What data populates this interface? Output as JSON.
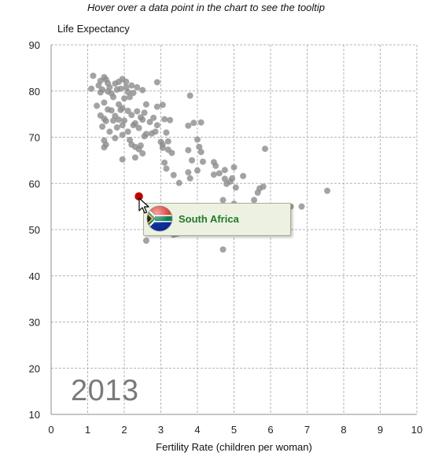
{
  "instruction": "Hover over a data point in the chart to see the tooltip",
  "chart_data": {
    "type": "scatter",
    "title": "",
    "xlabel": "Fertility Rate (children per woman)",
    "ylabel": "Life Expectancy",
    "xlim": [
      0,
      10
    ],
    "ylim": [
      10,
      90
    ],
    "x_ticks": [
      "0",
      "1",
      "2",
      "3",
      "4",
      "5",
      "6",
      "7",
      "8",
      "9",
      "10"
    ],
    "y_ticks": [
      "10",
      "20",
      "30",
      "40",
      "50",
      "60",
      "70",
      "80",
      "90"
    ],
    "grid": true,
    "year": "2013",
    "point_color": "#8c8c8c",
    "highlight_color": "#c00000",
    "highlight": {
      "name": "South Africa",
      "x": 2.4,
      "y": 57.2
    },
    "series": [
      {
        "points": [
          [
            1.15,
            83.3
          ],
          [
            1.3,
            81.2
          ],
          [
            1.35,
            82.2
          ],
          [
            1.4,
            80.3
          ],
          [
            1.45,
            83.0
          ],
          [
            1.5,
            82.5
          ],
          [
            1.55,
            81.7
          ],
          [
            1.6,
            80.8
          ],
          [
            1.65,
            79.5
          ],
          [
            1.75,
            81.6
          ],
          [
            1.85,
            82.0
          ],
          [
            1.9,
            80.5
          ],
          [
            1.95,
            82.6
          ],
          [
            2.05,
            82.0
          ],
          [
            2.1,
            79.8
          ],
          [
            2.2,
            81.2
          ],
          [
            1.1,
            80.5
          ],
          [
            1.25,
            76.8
          ],
          [
            1.35,
            79.7
          ],
          [
            1.45,
            77.5
          ],
          [
            1.55,
            79.9
          ],
          [
            1.7,
            78.7
          ],
          [
            1.8,
            80.3
          ],
          [
            1.85,
            77.1
          ],
          [
            1.95,
            76.3
          ],
          [
            2.0,
            78.4
          ],
          [
            2.05,
            80.8
          ],
          [
            2.15,
            78.7
          ],
          [
            2.25,
            79.6
          ],
          [
            2.35,
            80.8
          ],
          [
            2.5,
            80.2
          ],
          [
            2.9,
            81.9
          ],
          [
            1.35,
            74.7
          ],
          [
            1.45,
            74.0
          ],
          [
            1.55,
            76.0
          ],
          [
            1.65,
            75.8
          ],
          [
            1.75,
            74.6
          ],
          [
            1.85,
            73.8
          ],
          [
            1.9,
            75.9
          ],
          [
            2.0,
            73.6
          ],
          [
            2.1,
            75.7
          ],
          [
            2.2,
            74.8
          ],
          [
            2.3,
            73.0
          ],
          [
            2.35,
            75.6
          ],
          [
            2.45,
            74.3
          ],
          [
            2.55,
            75.3
          ],
          [
            2.6,
            77.1
          ],
          [
            2.7,
            73.3
          ],
          [
            2.8,
            74.2
          ],
          [
            2.9,
            76.6
          ],
          [
            3.05,
            77.0
          ],
          [
            1.4,
            72.3
          ],
          [
            1.5,
            73.5
          ],
          [
            1.6,
            71.2
          ],
          [
            1.7,
            73.6
          ],
          [
            1.8,
            72.1
          ],
          [
            1.95,
            72.6
          ],
          [
            2.1,
            71.2
          ],
          [
            2.25,
            72.6
          ],
          [
            2.4,
            72.0
          ],
          [
            2.5,
            73.8
          ],
          [
            2.6,
            70.7
          ],
          [
            2.75,
            70.8
          ],
          [
            2.85,
            71.2
          ],
          [
            1.45,
            69.3
          ],
          [
            1.5,
            68.4
          ],
          [
            1.45,
            67.8
          ],
          [
            1.75,
            69.8
          ],
          [
            1.95,
            70.5
          ],
          [
            2.15,
            69.4
          ],
          [
            2.2,
            68.4
          ],
          [
            2.3,
            67.9
          ],
          [
            2.4,
            67.4
          ],
          [
            2.45,
            68.2
          ],
          [
            2.5,
            66.5
          ],
          [
            2.3,
            65.6
          ],
          [
            1.95,
            65.2
          ],
          [
            2.55,
            70.2
          ],
          [
            2.9,
            72.6
          ],
          [
            3.0,
            69.0
          ],
          [
            3.05,
            68.4
          ],
          [
            3.1,
            73.9
          ],
          [
            3.15,
            71.0
          ],
          [
            3.2,
            69.1
          ],
          [
            3.25,
            73.7
          ],
          [
            3.05,
            67.7
          ],
          [
            3.2,
            67.3
          ],
          [
            3.3,
            66.6
          ],
          [
            3.1,
            64.5
          ],
          [
            3.15,
            63.2
          ],
          [
            3.35,
            61.8
          ],
          [
            3.5,
            60.1
          ],
          [
            3.75,
            62.4
          ],
          [
            3.8,
            61.1
          ],
          [
            3.8,
            79.0
          ],
          [
            3.75,
            72.5
          ],
          [
            3.9,
            73.1
          ],
          [
            4.1,
            73.2
          ],
          [
            3.75,
            67.2
          ],
          [
            4.0,
            69.5
          ],
          [
            4.05,
            67.9
          ],
          [
            4.1,
            66.8
          ],
          [
            4.15,
            64.7
          ],
          [
            3.85,
            65.0
          ],
          [
            4.0,
            62.8
          ],
          [
            4.45,
            64.6
          ],
          [
            4.5,
            63.8
          ],
          [
            4.6,
            62.2
          ],
          [
            4.45,
            61.9
          ],
          [
            4.75,
            62.9
          ],
          [
            4.9,
            60.4
          ],
          [
            5.0,
            63.5
          ],
          [
            5.25,
            61.6
          ],
          [
            4.75,
            61.0
          ],
          [
            4.95,
            61.1
          ],
          [
            5.05,
            59.1
          ],
          [
            4.8,
            59.9
          ],
          [
            5.8,
            59.3
          ],
          [
            5.7,
            58.9
          ],
          [
            5.65,
            58.0
          ],
          [
            5.55,
            56.4
          ],
          [
            5.85,
            67.5
          ],
          [
            6.55,
            55.0
          ],
          [
            6.85,
            55.0
          ],
          [
            7.55,
            58.4
          ],
          [
            5.0,
            55.6
          ],
          [
            4.7,
            56.4
          ],
          [
            4.7,
            45.7
          ],
          [
            2.6,
            47.6
          ],
          [
            3.35,
            48.9
          ],
          [
            3.45,
            49.1
          ],
          [
            2.75,
            50.5
          ],
          [
            2.8,
            51.9
          ]
        ]
      }
    ]
  }
}
